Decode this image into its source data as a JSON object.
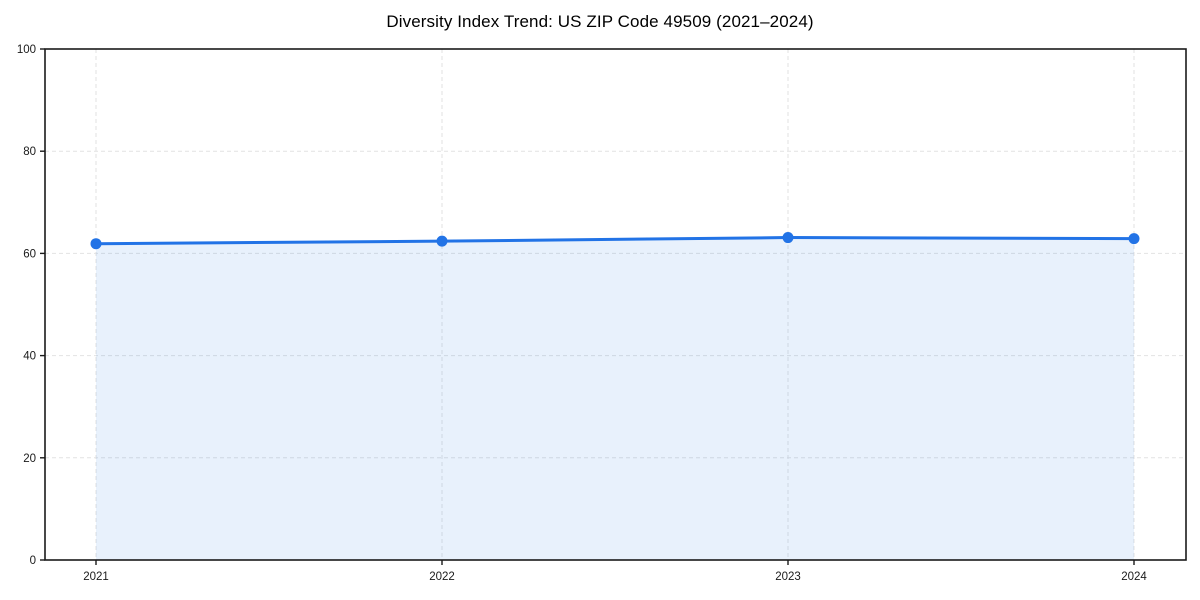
{
  "page": {
    "background": "#ffffff"
  },
  "chart_data": {
    "type": "area",
    "title": "Diversity Index Trend: US ZIP Code 49509 (2021–2024)",
    "categories": [
      "2021",
      "2022",
      "2023",
      "2024"
    ],
    "series": [
      {
        "name": "Diversity Index",
        "values": [
          61.9,
          62.4,
          63.1,
          62.9
        ]
      }
    ],
    "xlabel": "",
    "ylabel": "",
    "ylim": [
      0,
      100
    ],
    "yticks": [
      0,
      20,
      40,
      60,
      80,
      100
    ],
    "grid": true,
    "grid_style": "dashed",
    "legend": "none",
    "marker": "circle",
    "style": {
      "line_color": "#2273e6",
      "marker_color": "#2273e6",
      "area_fill": "rgba(34, 115, 230, 0.10)",
      "grid_color": "#e2e2e2",
      "spine_color": "#1a1a1a",
      "tick_color": "#1a1a1a",
      "tick_label_color": "#1a1a1a",
      "title_color": "#000000"
    }
  }
}
